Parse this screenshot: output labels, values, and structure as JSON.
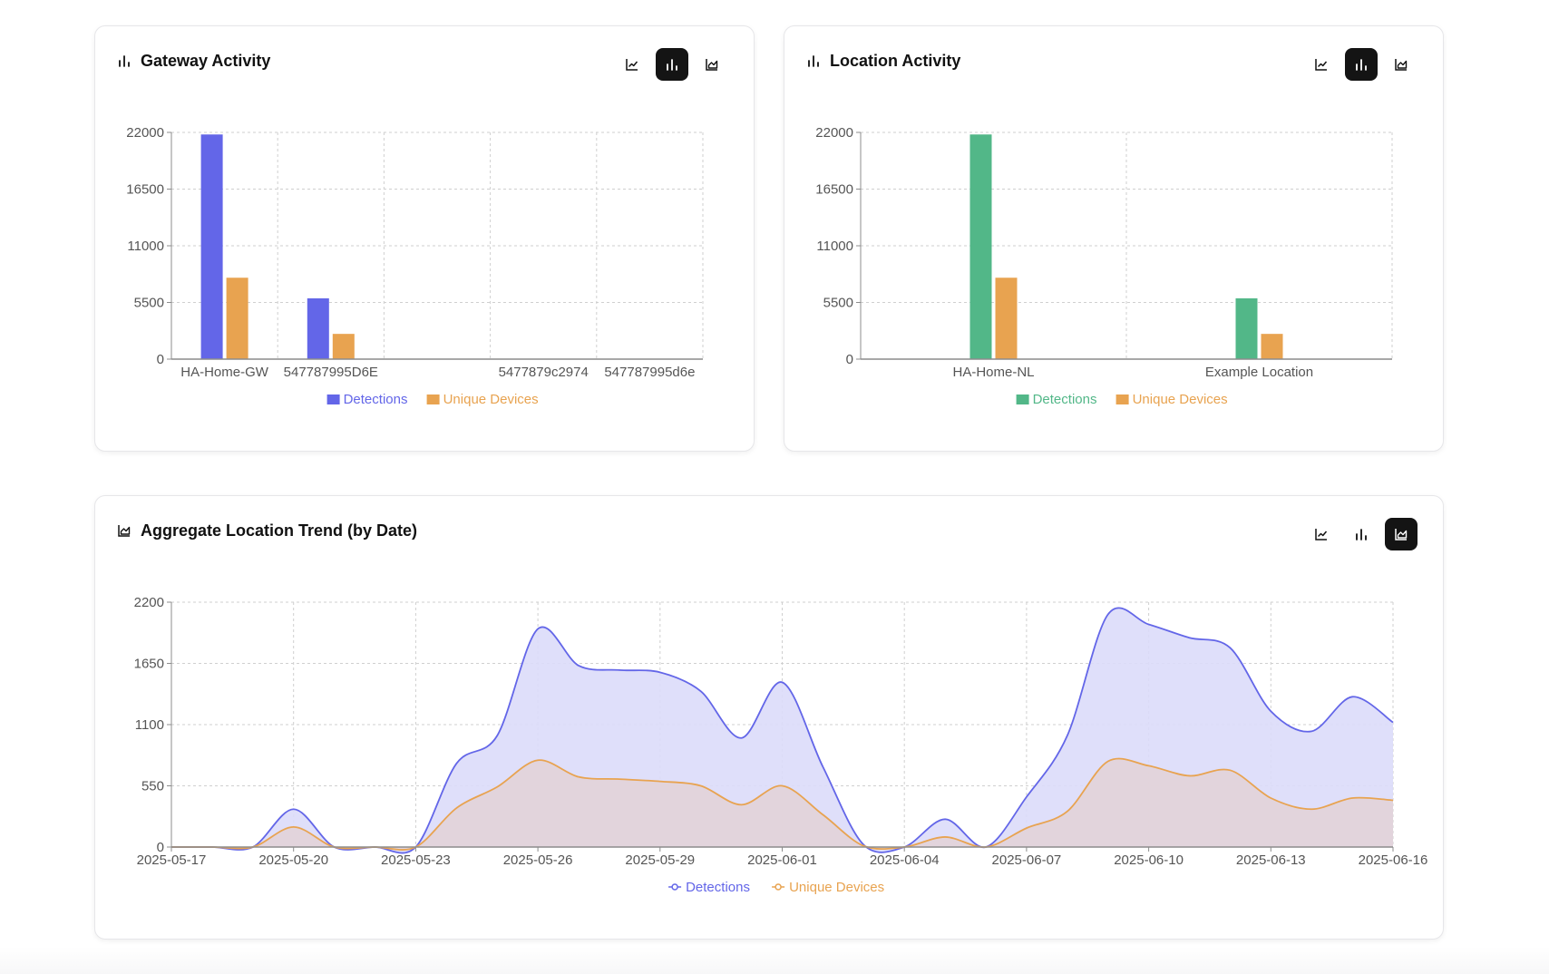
{
  "colors": {
    "detections_blue": "#6366e8",
    "detections_green": "#52b788",
    "unique_orange": "#e8a350",
    "area_blue_fill": "#dcdbfa",
    "area_orange_fill": "#e2d3d8",
    "grid": "#cfcfcf",
    "axis": "#8c8c8c"
  },
  "gateway": {
    "title": "Gateway Activity",
    "title_icon": "bar-chart-icon",
    "buttons": [
      {
        "icon": "line-chart-icon",
        "active": false
      },
      {
        "icon": "bar-chart-icon",
        "active": true
      },
      {
        "icon": "area-chart-icon",
        "active": false
      }
    ]
  },
  "location": {
    "title": "Location Activity",
    "title_icon": "bar-chart-icon",
    "buttons": [
      {
        "icon": "line-chart-icon",
        "active": false
      },
      {
        "icon": "bar-chart-icon",
        "active": true
      },
      {
        "icon": "area-chart-icon",
        "active": false
      }
    ]
  },
  "trend": {
    "title": "Aggregate Location Trend (by Date)",
    "title_icon": "area-chart-icon",
    "buttons": [
      {
        "icon": "line-chart-icon",
        "active": false
      },
      {
        "icon": "bar-chart-icon",
        "active": false
      },
      {
        "icon": "area-chart-icon",
        "active": true
      }
    ]
  },
  "chart_data": [
    {
      "id": "gateway",
      "type": "bar",
      "title": "Gateway Activity",
      "categories": [
        "HA-Home-GW",
        "547787995D6E",
        "",
        "5477879c2974",
        "547787995d6e"
      ],
      "series": [
        {
          "name": "Detections",
          "values": [
            21800,
            5900,
            40,
            0,
            0
          ]
        },
        {
          "name": "Unique Devices",
          "values": [
            7900,
            2450,
            10,
            0,
            0
          ]
        }
      ],
      "yticks": [
        0,
        5500,
        11000,
        16500,
        22000
      ],
      "ylim": [
        0,
        22000
      ],
      "grid": true,
      "legend": "bottom"
    },
    {
      "id": "location",
      "type": "bar",
      "title": "Location Activity",
      "categories": [
        "HA-Home-NL",
        "Example Location"
      ],
      "series": [
        {
          "name": "Detections",
          "values": [
            21800,
            5900
          ]
        },
        {
          "name": "Unique Devices",
          "values": [
            7900,
            2450
          ]
        }
      ],
      "yticks": [
        0,
        5500,
        11000,
        16500,
        22000
      ],
      "ylim": [
        0,
        22000
      ],
      "grid": true,
      "legend": "bottom"
    },
    {
      "id": "trend",
      "type": "area",
      "title": "Aggregate Location Trend (by Date)",
      "x": [
        "2025-05-17",
        "2025-05-18",
        "2025-05-19",
        "2025-05-20",
        "2025-05-21",
        "2025-05-22",
        "2025-05-23",
        "2025-05-24",
        "2025-05-25",
        "2025-05-26",
        "2025-05-27",
        "2025-05-28",
        "2025-05-29",
        "2025-05-30",
        "2025-05-31",
        "2025-06-01",
        "2025-06-02",
        "2025-06-03",
        "2025-06-04",
        "2025-06-05",
        "2025-06-06",
        "2025-06-07",
        "2025-06-08",
        "2025-06-09",
        "2025-06-10",
        "2025-06-11",
        "2025-06-12",
        "2025-06-13",
        "2025-06-14",
        "2025-06-15",
        "2025-06-16"
      ],
      "xtick_labels": [
        "2025-05-17",
        "2025-05-20",
        "2025-05-23",
        "2025-05-26",
        "2025-05-29",
        "2025-06-01",
        "2025-06-04",
        "2025-06-07",
        "2025-06-10",
        "2025-06-13",
        "2025-06-16"
      ],
      "series": [
        {
          "name": "Detections",
          "values": [
            0,
            0,
            0,
            340,
            0,
            0,
            0,
            750,
            1000,
            1960,
            1630,
            1590,
            1570,
            1400,
            980,
            1480,
            720,
            20,
            0,
            250,
            0,
            450,
            1000,
            2090,
            2000,
            1880,
            1790,
            1220,
            1040,
            1350,
            1120
          ]
        },
        {
          "name": "Unique Devices",
          "values": [
            0,
            0,
            0,
            180,
            0,
            0,
            0,
            350,
            540,
            780,
            630,
            610,
            590,
            550,
            380,
            550,
            290,
            10,
            0,
            90,
            0,
            170,
            320,
            770,
            730,
            640,
            690,
            440,
            340,
            440,
            420
          ]
        }
      ],
      "yticks": [
        0,
        550,
        1100,
        1650,
        2200
      ],
      "ylim": [
        0,
        2200
      ],
      "grid": true,
      "legend": "bottom"
    }
  ]
}
